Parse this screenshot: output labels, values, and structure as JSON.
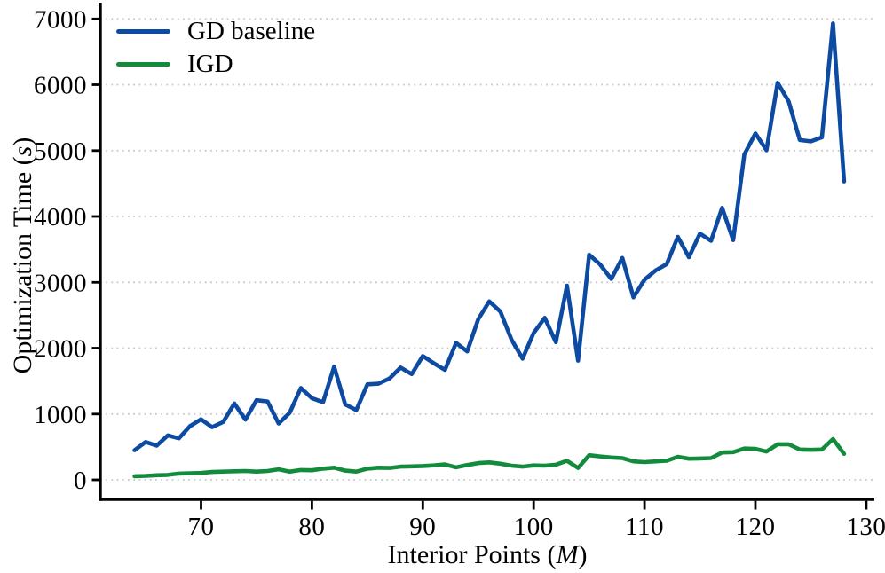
{
  "chart_data": {
    "type": "line",
    "title": "",
    "xlabel_prefix": "Interior Points (",
    "xlabel_var": "M",
    "xlabel_suffix": ")",
    "ylabel_prefix": "Optimization Time (",
    "ylabel_var": "s",
    "ylabel_suffix": ")",
    "x": [
      64,
      65,
      66,
      67,
      68,
      69,
      70,
      71,
      72,
      73,
      74,
      75,
      76,
      77,
      78,
      79,
      80,
      81,
      82,
      83,
      84,
      85,
      86,
      87,
      88,
      89,
      90,
      91,
      92,
      93,
      94,
      95,
      96,
      97,
      98,
      99,
      100,
      101,
      102,
      103,
      104,
      105,
      106,
      107,
      108,
      109,
      110,
      111,
      112,
      113,
      114,
      115,
      116,
      117,
      118,
      119,
      120,
      121,
      122,
      123,
      124,
      125,
      126,
      127,
      128
    ],
    "series": [
      {
        "name": "GD baseline",
        "color": "#0d4ba3",
        "values": [
          450,
          575,
          520,
          675,
          630,
          815,
          920,
          800,
          880,
          1160,
          915,
          1210,
          1190,
          855,
          1020,
          1395,
          1240,
          1180,
          1720,
          1145,
          1060,
          1450,
          1460,
          1540,
          1705,
          1605,
          1880,
          1770,
          1670,
          2080,
          1950,
          2440,
          2710,
          2555,
          2130,
          1840,
          2230,
          2460,
          2090,
          2950,
          1810,
          3420,
          3270,
          3050,
          3370,
          2770,
          3040,
          3180,
          3275,
          3690,
          3380,
          3740,
          3630,
          4130,
          3640,
          4940,
          5260,
          5005,
          6030,
          5745,
          5160,
          5140,
          5200,
          6930,
          4530
        ]
      },
      {
        "name": "IGD",
        "color": "#128b3d",
        "values": [
          55,
          60,
          70,
          75,
          95,
          100,
          105,
          120,
          125,
          130,
          135,
          125,
          135,
          160,
          125,
          150,
          145,
          170,
          185,
          140,
          125,
          170,
          185,
          180,
          200,
          205,
          210,
          220,
          235,
          190,
          225,
          255,
          265,
          245,
          215,
          200,
          220,
          215,
          230,
          290,
          180,
          375,
          355,
          340,
          330,
          280,
          270,
          280,
          290,
          350,
          320,
          325,
          330,
          415,
          420,
          475,
          470,
          430,
          540,
          540,
          460,
          455,
          460,
          620,
          395
        ]
      }
    ],
    "x_ticks": [
      70,
      80,
      90,
      100,
      110,
      120,
      130
    ],
    "y_ticks": [
      0,
      1000,
      2000,
      3000,
      4000,
      5000,
      6000,
      7000
    ],
    "xlim": [
      60.9,
      130.7
    ],
    "ylim": [
      0,
      7250
    ],
    "grid": "horizontal dotted",
    "grid_color": "#c8c8c8",
    "axis_color": "#000000",
    "legend_position": "upper left",
    "background": "#ffffff"
  }
}
